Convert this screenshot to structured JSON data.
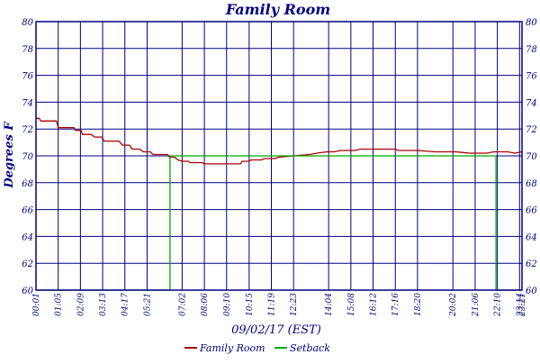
{
  "chart_data": {
    "type": "line",
    "title": "Family Room",
    "xlabel": "09/02/17 (EST)",
    "ylabel": "Degrees F",
    "ylim": [
      60,
      80
    ],
    "yticks": [
      60,
      62,
      64,
      66,
      68,
      70,
      72,
      74,
      76,
      78,
      80
    ],
    "x_range_minutes": [
      1,
      1401
    ],
    "xtick_labels": [
      "00:01",
      "01:05",
      "02:09",
      "03:13",
      "04:17",
      "05:21",
      "07:02",
      "08:06",
      "09:10",
      "10:15",
      "11:19",
      "12:23",
      "14:04",
      "15:08",
      "16:12",
      "17:16",
      "18:20",
      "20:02",
      "21:06",
      "22:10",
      "23:14",
      "23:21"
    ],
    "xtick_minutes": [
      1,
      65,
      129,
      193,
      257,
      321,
      422,
      486,
      550,
      615,
      679,
      743,
      844,
      908,
      972,
      1036,
      1100,
      1202,
      1266,
      1330,
      1394,
      1401
    ],
    "grid": true,
    "legend_position": "bottom",
    "colors": {
      "axis": "#000080",
      "grid": "#000080",
      "text": "#000080"
    },
    "series": [
      {
        "name": "Family Room",
        "color": "#aa0000",
        "points": [
          [
            1,
            72.8
          ],
          [
            10,
            72.8
          ],
          [
            15,
            72.6
          ],
          [
            60,
            72.6
          ],
          [
            65,
            72.1
          ],
          [
            110,
            72.1
          ],
          [
            115,
            71.9
          ],
          [
            130,
            71.9
          ],
          [
            135,
            71.6
          ],
          [
            160,
            71.6
          ],
          [
            170,
            71.4
          ],
          [
            190,
            71.4
          ],
          [
            198,
            71.1
          ],
          [
            240,
            71.1
          ],
          [
            250,
            70.8
          ],
          [
            270,
            70.8
          ],
          [
            278,
            70.5
          ],
          [
            300,
            70.5
          ],
          [
            310,
            70.3
          ],
          [
            330,
            70.3
          ],
          [
            338,
            70.1
          ],
          [
            380,
            70.1
          ],
          [
            386,
            69.9
          ],
          [
            400,
            69.9
          ],
          [
            410,
            69.7
          ],
          [
            422,
            69.6
          ],
          [
            440,
            69.6
          ],
          [
            445,
            69.5
          ],
          [
            480,
            69.5
          ],
          [
            486,
            69.4
          ],
          [
            560,
            69.4
          ],
          [
            590,
            69.4
          ],
          [
            595,
            69.6
          ],
          [
            615,
            69.6
          ],
          [
            620,
            69.7
          ],
          [
            650,
            69.7
          ],
          [
            660,
            69.8
          ],
          [
            690,
            69.8
          ],
          [
            700,
            69.9
          ],
          [
            740,
            70.0
          ],
          [
            790,
            70.1
          ],
          [
            810,
            70.2
          ],
          [
            840,
            70.3
          ],
          [
            860,
            70.3
          ],
          [
            880,
            70.4
          ],
          [
            920,
            70.4
          ],
          [
            935,
            70.5
          ],
          [
            990,
            70.5
          ],
          [
            1000,
            70.5
          ],
          [
            1036,
            70.5
          ],
          [
            1045,
            70.4
          ],
          [
            1070,
            70.4
          ],
          [
            1100,
            70.4
          ],
          [
            1150,
            70.3
          ],
          [
            1210,
            70.3
          ],
          [
            1250,
            70.2
          ],
          [
            1300,
            70.2
          ],
          [
            1320,
            70.3
          ],
          [
            1360,
            70.3
          ],
          [
            1380,
            70.2
          ],
          [
            1401,
            70.3
          ]
        ]
      },
      {
        "name": "Setback",
        "color": "#00aa00",
        "points": [
          [
            1,
            60
          ],
          [
            387,
            60
          ],
          [
            387,
            70
          ],
          [
            1326,
            70
          ],
          [
            1326,
            60
          ],
          [
            1401,
            60
          ]
        ]
      }
    ]
  }
}
